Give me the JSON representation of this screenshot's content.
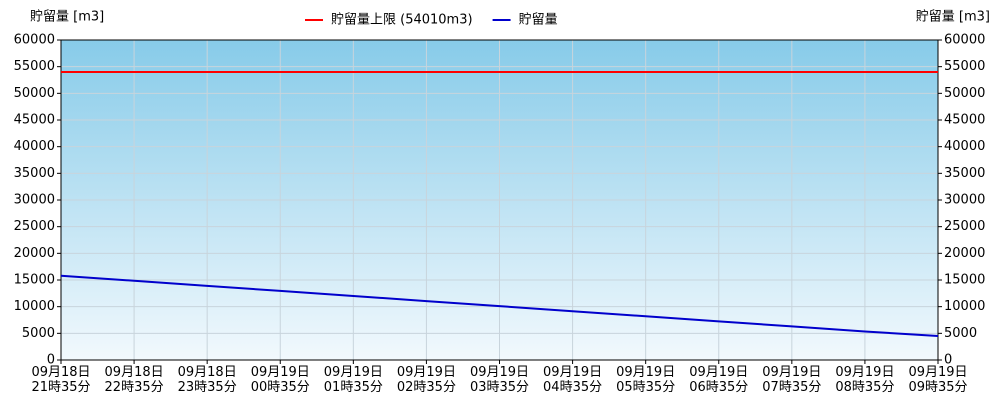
{
  "chart_data": {
    "type": "line",
    "y_label": "貯留量 [m3]",
    "y2_label": "貯留量 [m3]",
    "categories": [
      "09月18日\n21時35分",
      "09月18日\n22時35分",
      "09月18日\n23時35分",
      "09月19日\n00時35分",
      "09月19日\n01時35分",
      "09月19日\n02時35分",
      "09月19日\n03時35分",
      "09月19日\n04時35分",
      "09月19日\n05時35分",
      "09月19日\n06時35分",
      "09月19日\n07時35分",
      "09月19日\n08時35分",
      "09月19日\n09時35分"
    ],
    "series": [
      {
        "name": "貯留量上限 (54010m3)",
        "color": "#ff0000",
        "values": [
          54010,
          54010,
          54010,
          54010,
          54010,
          54010,
          54010,
          54010,
          54010,
          54010,
          54010,
          54010,
          54010
        ]
      },
      {
        "name": "貯留量",
        "color": "#0000cc",
        "values": [
          15800,
          14850,
          13900,
          12950,
          12000,
          11050,
          10100,
          9150,
          8200,
          7250,
          6300,
          5350,
          4500
        ]
      }
    ],
    "ylim": [
      0,
      60000
    ],
    "yticks": [
      0,
      5000,
      10000,
      15000,
      20000,
      25000,
      30000,
      35000,
      40000,
      45000,
      50000,
      55000,
      60000
    ],
    "y2lim": [
      0,
      60000
    ],
    "y2ticks": [
      0,
      5000,
      10000,
      15000,
      20000,
      25000,
      30000,
      35000,
      40000,
      45000,
      50000,
      55000,
      60000
    ],
    "grid": true
  }
}
